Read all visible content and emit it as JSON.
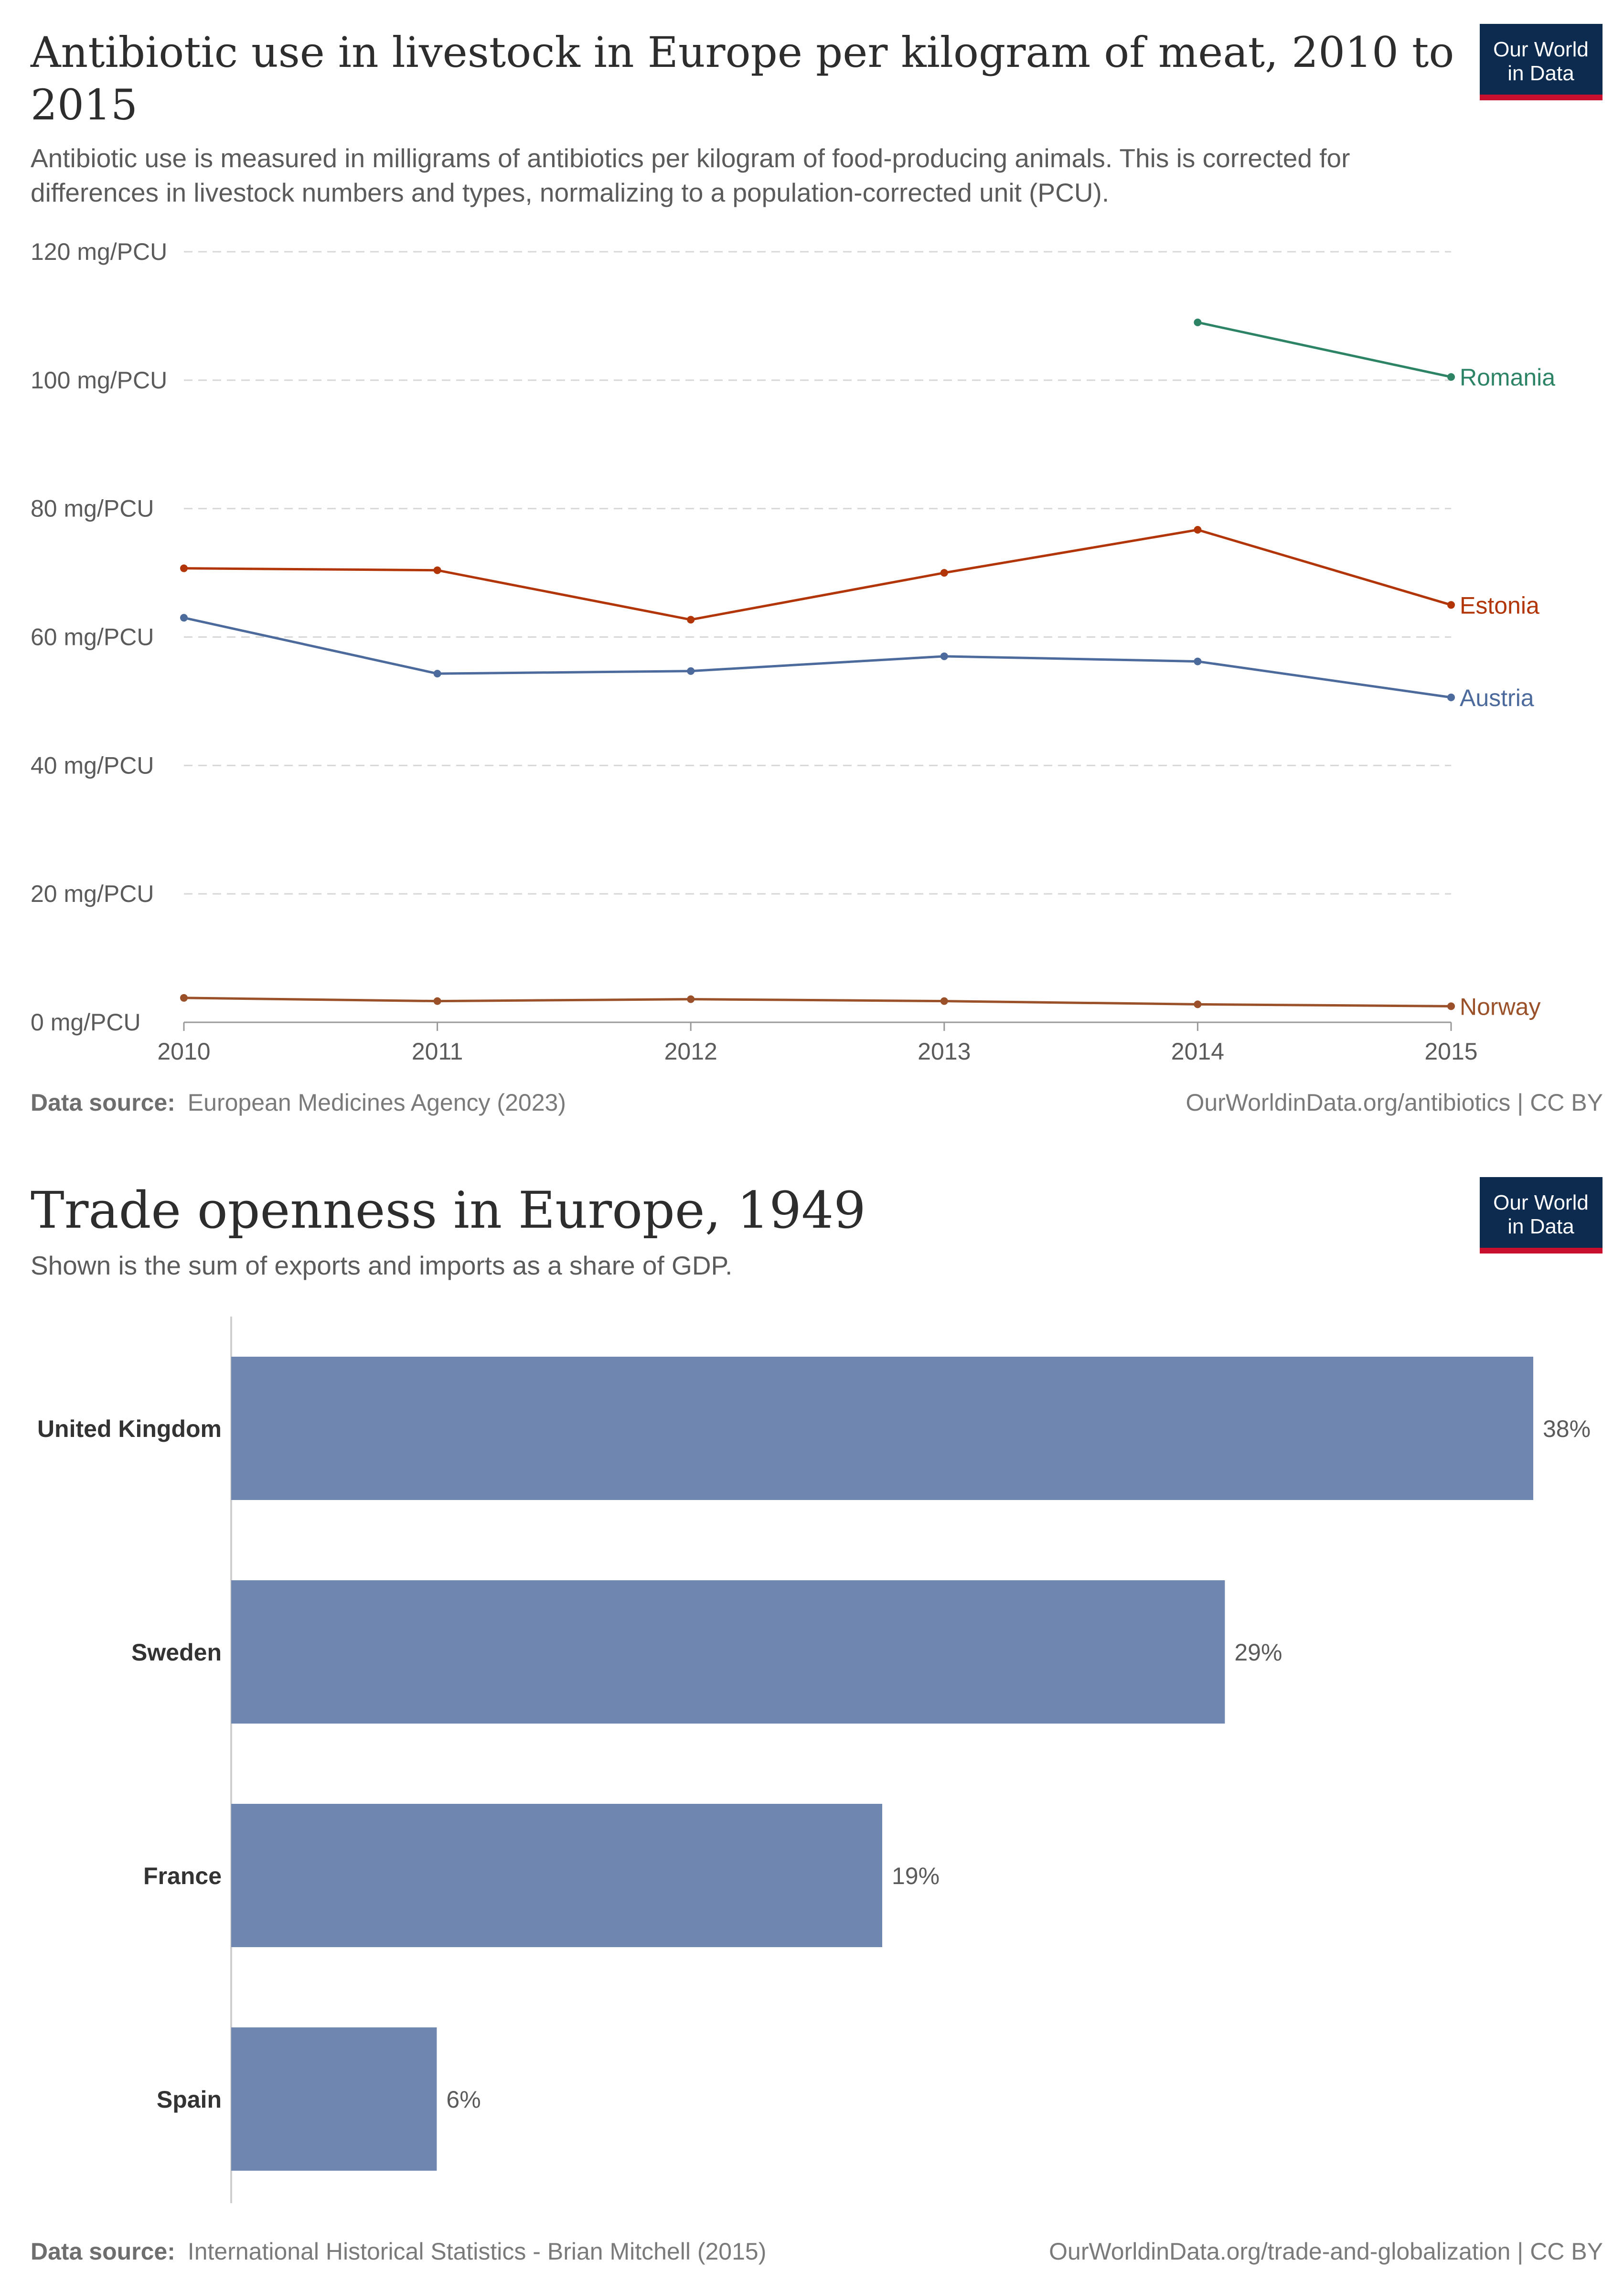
{
  "logo": {
    "line1": "Our World",
    "line2": "in Data",
    "bg_color": "#0d2a4f",
    "accent_color": "#c8102e"
  },
  "chart_data": [
    {
      "type": "line",
      "title_line1": "Antibiotic use in livestock in Europe per kilogram of meat, 2010 to",
      "title_line2": "2015",
      "subtitle_line1": "Antibiotic use is measured in milligrams of antibiotics per kilogram of food-producing animals. This is corrected for",
      "subtitle_line2": "differences in livestock numbers and types, normalizing to a population-corrected unit (PCU).",
      "x": [
        2010,
        2011,
        2012,
        2013,
        2014,
        2015
      ],
      "x_tick_labels": [
        "2010",
        "2011",
        "2012",
        "2013",
        "2014",
        "2015"
      ],
      "y_ticks": [
        0,
        20,
        40,
        60,
        80,
        100,
        120
      ],
      "y_tick_labels": [
        "0 mg/PCU",
        "20 mg/PCU",
        "40 mg/PCU",
        "60 mg/PCU",
        "80 mg/PCU",
        "100 mg/PCU",
        "120 mg/PCU"
      ],
      "ylim": [
        0,
        120
      ],
      "grid": true,
      "series": [
        {
          "name": "Romania",
          "color": "#2c8465",
          "x": [
            2014,
            2015
          ],
          "values": [
            109,
            100.5
          ]
        },
        {
          "name": "Estonia",
          "color": "#b13507",
          "x": [
            2010,
            2011,
            2012,
            2013,
            2014,
            2015
          ],
          "values": [
            70.7,
            70.4,
            62.7,
            70.0,
            76.7,
            65.0
          ]
        },
        {
          "name": "Austria",
          "color": "#4c6a9c",
          "x": [
            2010,
            2011,
            2012,
            2013,
            2014,
            2015
          ],
          "values": [
            63.0,
            54.3,
            54.7,
            57.0,
            56.2,
            50.6
          ]
        },
        {
          "name": "Norway",
          "color": "#9a5129",
          "x": [
            2010,
            2011,
            2012,
            2013,
            2014,
            2015
          ],
          "values": [
            3.8,
            3.3,
            3.6,
            3.3,
            2.8,
            2.5
          ]
        }
      ],
      "source_label": "Data source:",
      "source_text": "European Medicines Agency (2023)",
      "attribution": "OurWorldinData.org/antibiotics | CC BY"
    },
    {
      "type": "bar",
      "orientation": "horizontal",
      "title": "Trade openness in Europe, 1949",
      "subtitle": "Shown is the sum of exports and imports as a share of GDP.",
      "categories": [
        "United Kingdom",
        "Sweden",
        "France",
        "Spain"
      ],
      "values": [
        38,
        29,
        19,
        6
      ],
      "value_labels": [
        "38%",
        "29%",
        "19%",
        "6%"
      ],
      "xlim": [
        0,
        38
      ],
      "bar_color": "#6f87b0",
      "source_label": "Data source:",
      "source_text": "International Historical Statistics - Brian Mitchell (2015)",
      "attribution": "OurWorldinData.org/trade-and-globalization | CC BY"
    }
  ]
}
